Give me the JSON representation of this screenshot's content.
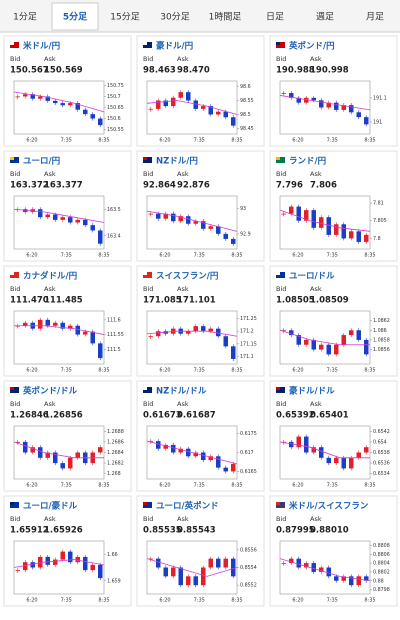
{
  "tabs": [
    "1分足",
    "5分足",
    "15分足",
    "30分足",
    "1時間足",
    "日足",
    "週足",
    "月足"
  ],
  "active_tab": 1,
  "bid_label": "Bid",
  "ask_label": "Ask",
  "x_labels": [
    "6:20",
    "7:35",
    "8:35"
  ],
  "cards": [
    {
      "title": "米ドル/円",
      "bid": "150.567",
      "ask": "150.569",
      "ylim": [
        150.53,
        150.77
      ],
      "yticks": [
        150.75,
        150.7,
        150.65,
        150.6,
        150.55
      ],
      "close": [
        150.7,
        150.71,
        150.69,
        150.7,
        150.68,
        150.67,
        150.66,
        150.67,
        150.64,
        150.62,
        150.6,
        150.57
      ],
      "ma": [
        150.72,
        150.7,
        150.67,
        150.63
      ]
    },
    {
      "title": "豪ドル/円",
      "bid": "98.463",
      "ask": "98.470",
      "ylim": [
        98.43,
        98.62
      ],
      "yticks": [
        98.6,
        98.55,
        98.5,
        98.45
      ],
      "close": [
        98.52,
        98.55,
        98.53,
        98.56,
        98.58,
        98.55,
        98.52,
        98.53,
        98.5,
        98.51,
        98.49,
        98.46
      ],
      "ma": [
        98.54,
        98.55,
        98.53,
        98.5
      ]
    },
    {
      "title": "英ポンド/円",
      "bid": "190.988",
      "ask": "190.998",
      "ylim": [
        190.95,
        191.17
      ],
      "yticks": [
        191.1,
        191
      ],
      "close": [
        191.12,
        191.1,
        191.08,
        191.1,
        191.09,
        191.06,
        191.08,
        191.05,
        191.07,
        191.04,
        191.02,
        190.99
      ],
      "ma": [
        191.11,
        191.09,
        191.07,
        191.05
      ]
    },
    {
      "title": "ユーロ/円",
      "bid": "163.372",
      "ask": "163.377",
      "ylim": [
        163.35,
        163.55
      ],
      "yticks": [
        163.5,
        163.4
      ],
      "close": [
        163.5,
        163.49,
        163.5,
        163.47,
        163.48,
        163.46,
        163.47,
        163.45,
        163.46,
        163.44,
        163.42,
        163.37
      ],
      "ma": [
        163.5,
        163.49,
        163.47,
        163.45
      ]
    },
    {
      "title": "NZドル/円",
      "bid": "92.864",
      "ask": "92.876",
      "ylim": [
        92.84,
        93.05
      ],
      "yticks": [
        93,
        92.9
      ],
      "close": [
        92.98,
        92.96,
        92.98,
        92.95,
        92.97,
        92.94,
        92.95,
        92.92,
        92.93,
        92.9,
        92.88,
        92.86
      ],
      "ma": [
        92.99,
        92.97,
        92.94,
        92.91
      ]
    },
    {
      "title": "ランド/円",
      "bid": "7.796",
      "ask": "7.806",
      "ylim": [
        7.797,
        7.812
      ],
      "yticks": [
        7.81,
        7.805,
        7.8
      ],
      "close": [
        7.807,
        7.809,
        7.805,
        7.808,
        7.803,
        7.806,
        7.801,
        7.804,
        7.8,
        7.802,
        7.799,
        7.801
      ],
      "ma": [
        7.808,
        7.805,
        7.803,
        7.802
      ]
    },
    {
      "title": "カナダドル/円",
      "bid": "111.470",
      "ask": "111.485",
      "ylim": [
        111.45,
        111.63
      ],
      "yticks": [
        111.6,
        111.55,
        111.5
      ],
      "close": [
        111.58,
        111.59,
        111.57,
        111.6,
        111.58,
        111.59,
        111.57,
        111.58,
        111.55,
        111.56,
        111.52,
        111.47
      ],
      "ma": [
        111.58,
        111.58,
        111.57,
        111.55
      ]
    },
    {
      "title": "スイスフラン/円",
      "bid": "171.085",
      "ask": "171.101",
      "ylim": [
        171.07,
        171.28
      ],
      "yticks": [
        171.25,
        171.2,
        171.15,
        171.1
      ],
      "close": [
        171.18,
        171.2,
        171.19,
        171.21,
        171.19,
        171.2,
        171.22,
        171.2,
        171.21,
        171.18,
        171.14,
        171.09
      ],
      "ma": [
        171.19,
        171.2,
        171.2,
        171.18
      ]
    },
    {
      "title": "ユーロ/ドル",
      "bid": "1.08505",
      "ask": "1.08509",
      "ylim": [
        1.0853,
        1.0864
      ],
      "yticks": [
        1.0862,
        1.086,
        1.0858,
        1.0856
      ],
      "close": [
        1.086,
        1.0859,
        1.0857,
        1.0858,
        1.0856,
        1.0857,
        1.0855,
        1.0857,
        1.0859,
        1.086,
        1.0858,
        1.0855
      ],
      "ma": [
        1.086,
        1.0858,
        1.0857,
        1.0857
      ]
    },
    {
      "title": "英ポンド/ドル",
      "bid": "1.26846",
      "ask": "1.26856",
      "ylim": [
        1.2679,
        1.2689
      ],
      "yticks": [
        1.2688,
        1.2686,
        1.2684,
        1.2682,
        1.268
      ],
      "close": [
        1.2686,
        1.2684,
        1.2685,
        1.2683,
        1.2684,
        1.2682,
        1.2681,
        1.2683,
        1.2684,
        1.2682,
        1.2684,
        1.2685
      ],
      "ma": [
        1.2686,
        1.2684,
        1.2683,
        1.2683
      ]
    },
    {
      "title": "NZドル/ドル",
      "bid": "0.61673",
      "ask": "0.61687",
      "ylim": [
        0.6163,
        0.6177
      ],
      "yticks": [
        0.6175,
        0.617,
        0.6165
      ],
      "close": [
        0.6173,
        0.6171,
        0.6172,
        0.617,
        0.6171,
        0.6169,
        0.617,
        0.6168,
        0.6169,
        0.6166,
        0.6165,
        0.6167
      ],
      "ma": [
        0.6173,
        0.6171,
        0.6169,
        0.6167
      ]
    },
    {
      "title": "豪ドル/ドル",
      "bid": "0.65392",
      "ask": "0.65401",
      "ylim": [
        0.6533,
        0.6543
      ],
      "yticks": [
        0.6542,
        0.654,
        0.6538,
        0.6536,
        0.6534
      ],
      "close": [
        0.654,
        0.6539,
        0.6541,
        0.6538,
        0.6539,
        0.6537,
        0.6536,
        0.6537,
        0.6535,
        0.6537,
        0.6538,
        0.6539
      ],
      "ma": [
        0.654,
        0.6539,
        0.6537,
        0.6537
      ]
    },
    {
      "title": "ユーロ/豪ドル",
      "bid": "1.65912",
      "ask": "1.65926",
      "ylim": [
        1.6585,
        1.6605
      ],
      "yticks": [
        1.66,
        1.659
      ],
      "close": [
        1.6594,
        1.6597,
        1.6595,
        1.6599,
        1.6596,
        1.6598,
        1.6601,
        1.6597,
        1.6599,
        1.6594,
        1.6596,
        1.6591
      ],
      "ma": [
        1.6595,
        1.6597,
        1.6598,
        1.6596
      ]
    },
    {
      "title": "ユーロ/英ポンド",
      "bid": "0.85535",
      "ask": "0.85543",
      "ylim": [
        0.8551,
        0.8557
      ],
      "yticks": [
        0.8556,
        0.8554,
        0.8552
      ],
      "close": [
        0.8555,
        0.8554,
        0.8553,
        0.8554,
        0.8552,
        0.8553,
        0.8552,
        0.8554,
        0.8555,
        0.8554,
        0.8555,
        0.8553
      ],
      "ma": [
        0.8555,
        0.8554,
        0.8553,
        0.8554
      ]
    },
    {
      "title": "米ドル/スイスフラン",
      "bid": "0.87995",
      "ask": "0.88010",
      "ylim": [
        0.8797,
        0.8809
      ],
      "yticks": [
        0.8808,
        0.8806,
        0.8804,
        0.8802,
        0.88,
        0.8798
      ],
      "close": [
        0.8804,
        0.8805,
        0.8803,
        0.8804,
        0.8802,
        0.8803,
        0.8801,
        0.88,
        0.8801,
        0.8799,
        0.8801,
        0.88
      ],
      "ma": [
        0.8805,
        0.8803,
        0.8801,
        0.88
      ]
    }
  ]
}
